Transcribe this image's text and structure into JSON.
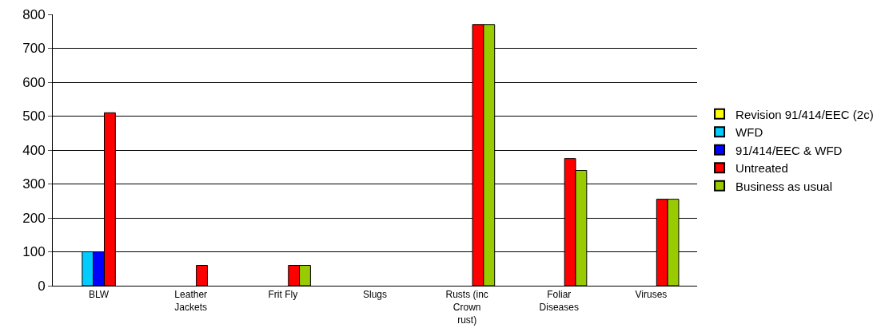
{
  "chart_data": {
    "type": "bar",
    "categories": [
      "BLW",
      "Leather Jackets",
      "Frit Fly",
      "Slugs",
      "Rusts (inc Crown rust)",
      "Foliar Diseases",
      "Viruses"
    ],
    "series": [
      {
        "name": "Revision 91/414/EEC (2c)",
        "color": "#ffff00",
        "values": [
          null,
          null,
          null,
          null,
          null,
          null,
          null
        ]
      },
      {
        "name": "WFD",
        "color": "#00ccff",
        "values": [
          100,
          null,
          null,
          null,
          null,
          null,
          null
        ]
      },
      {
        "name": "91/414/EEC & WFD",
        "color": "#0000ff",
        "values": [
          100,
          null,
          null,
          null,
          null,
          null,
          null
        ]
      },
      {
        "name": "Untreated",
        "color": "#ff0000",
        "values": [
          510,
          60,
          60,
          null,
          770,
          375,
          255
        ]
      },
      {
        "name": "Business as usual",
        "color": "#99cc00",
        "values": [
          null,
          null,
          60,
          null,
          770,
          340,
          255
        ]
      }
    ],
    "ylim": [
      0,
      800
    ],
    "yticks": [
      0,
      100,
      200,
      300,
      400,
      500,
      600,
      700,
      800
    ],
    "grid": "y",
    "legend": "right"
  }
}
